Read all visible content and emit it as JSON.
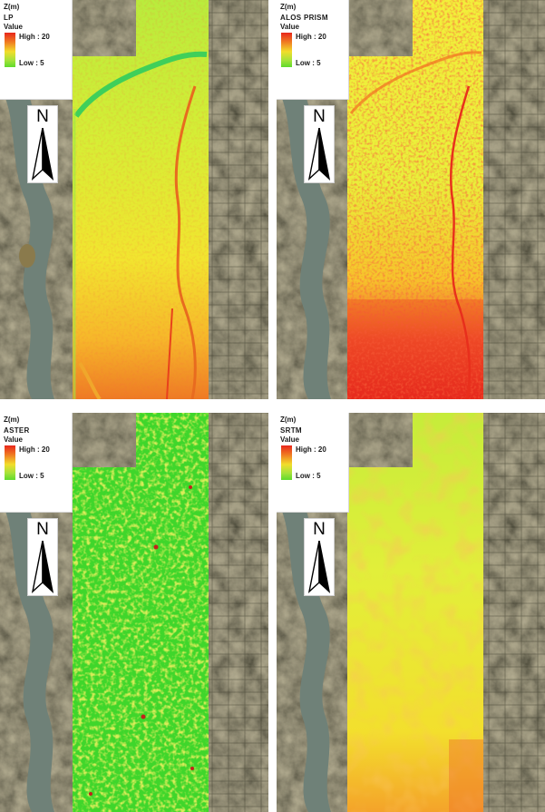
{
  "unit_label": "Z(m)",
  "value_label": "Value",
  "north_label": "N",
  "panels": [
    {
      "name": "LP",
      "high": "High : 20",
      "low": "Low : 5"
    },
    {
      "name": "ALOS PRISM",
      "high": "High : 20",
      "low": "Low : 5"
    },
    {
      "name": "ASTER",
      "high": "High : 20",
      "low": "Low : 5"
    },
    {
      "name": "SRTM",
      "high": "High : 20",
      "low": "Low : 5"
    }
  ],
  "colors": {
    "ramp_high": "#e8261b",
    "ramp_mid": "#f2dd2b",
    "ramp_low": "#5fdb2c",
    "satellite_base": "#4d4a36",
    "river": "#6f8178"
  }
}
